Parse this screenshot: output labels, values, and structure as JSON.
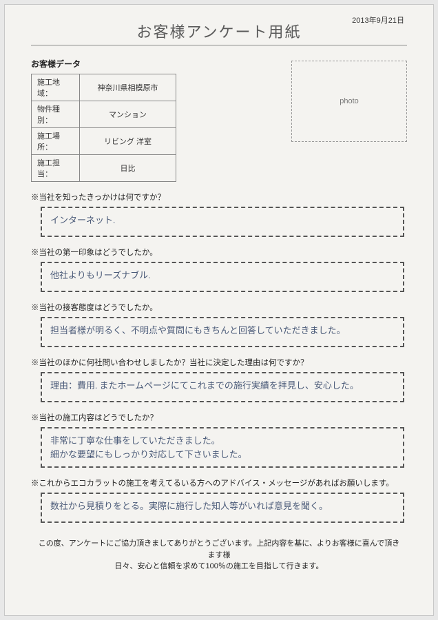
{
  "date": "2013年9月21日",
  "title": "お客様アンケート用紙",
  "customer_data_label": "お客様データ",
  "data_rows": [
    {
      "k": "施工地域：",
      "v": "神奈川県相模原市"
    },
    {
      "k": "物件種別：",
      "v": "マンション"
    },
    {
      "k": "施工場所：",
      "v": "リビング 洋室"
    },
    {
      "k": "施工担当：",
      "v": "日比"
    }
  ],
  "photo_label": "photo",
  "qa": [
    {
      "q": "※当社を知ったきっかけは何ですか？",
      "a": "インターネット."
    },
    {
      "q": "※当社の第一印象はどうでしたか。",
      "a": "他社よりもリーズナブル."
    },
    {
      "q": "※当社の接客態度はどうでしたか。",
      "a": "担当者様が明るく、不明点や質問にもきちんと回答していただきました。"
    },
    {
      "q": "※当社のほかに何社問い合わせしましたか？当社に決定した理由は何ですか？",
      "a": "理由：費用. またホームページにてこれまでの施行実績を拝見し、安心した。"
    },
    {
      "q": "※当社の施工内容はどうでしたか？",
      "a": "非常に丁寧な仕事をしていただきました。\n細かな要望にもしっかり対応して下さいました。"
    },
    {
      "q": "※これからエコカラットの施工を考えてるいる方へのアドバイス・メッセージがあればお願いします。",
      "a": "数社から見積りをとる。実際に施行した知人等がいれば意見を聞く。"
    }
  ],
  "footer": "この度、アンケートにご協力頂きましてありがとうございます。上記内容を基に、よりお客様に喜んで頂きます様\n日々、安心と信頼を求めて100％の施工を目指して行きます。",
  "colors": {
    "page_bg": "#f4f3f0",
    "border": "#888888",
    "dashed": "#555555",
    "text": "#222222",
    "handwriting": "#4a5a78"
  }
}
